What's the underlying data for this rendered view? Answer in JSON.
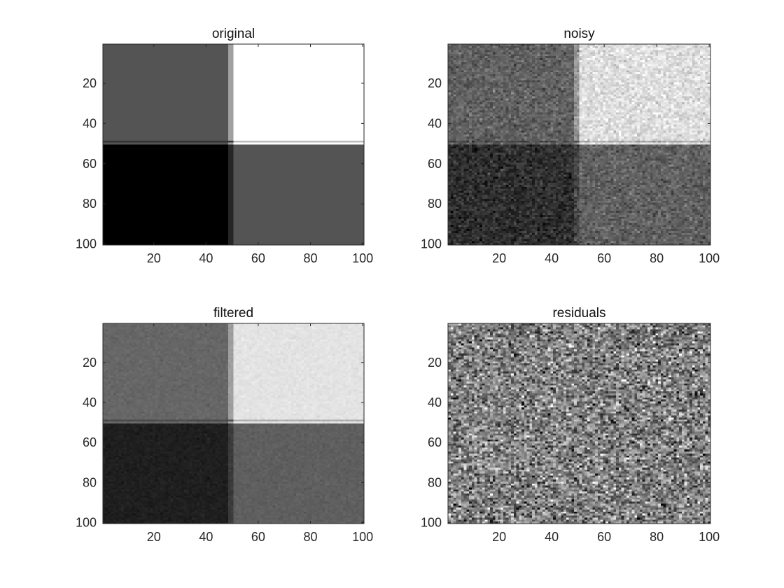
{
  "chart_data": [
    {
      "type": "heatmap",
      "title": "original",
      "colormap": "gray",
      "image_size": [
        100,
        100
      ],
      "x_ticks": [
        20,
        40,
        60,
        80,
        100
      ],
      "y_ticks": [
        20,
        40,
        60,
        80,
        100
      ],
      "xlim": [
        0.5,
        100.5
      ],
      "ylim": [
        100.5,
        0.5
      ],
      "quadrants": {
        "top_left": 0.33,
        "top_right": 1.0,
        "bottom_left": 0.0,
        "bottom_right": 0.33
      },
      "noise_std": 0,
      "smoothing_width": 1
    },
    {
      "type": "heatmap",
      "title": "noisy",
      "colormap": "gray",
      "image_size": [
        100,
        100
      ],
      "x_ticks": [
        20,
        40,
        60,
        80,
        100
      ],
      "y_ticks": [
        20,
        40,
        60,
        80,
        100
      ],
      "xlim": [
        0.5,
        100.5
      ],
      "ylim": [
        100.5,
        0.5
      ],
      "quadrants": {
        "top_left": 0.38,
        "top_right": 0.87,
        "bottom_left": 0.18,
        "bottom_right": 0.38
      },
      "noise_std": 0.06,
      "smoothing_width": 1
    },
    {
      "type": "heatmap",
      "title": "filtered",
      "colormap": "gray",
      "image_size": [
        100,
        100
      ],
      "x_ticks": [
        20,
        40,
        60,
        80,
        100
      ],
      "y_ticks": [
        20,
        40,
        60,
        80,
        100
      ],
      "xlim": [
        0.5,
        100.5
      ],
      "ylim": [
        100.5,
        0.5
      ],
      "quadrants": {
        "top_left": 0.4,
        "top_right": 0.89,
        "bottom_left": 0.12,
        "bottom_right": 0.37
      },
      "noise_std": 0.015,
      "smoothing_width": 1
    },
    {
      "type": "heatmap",
      "title": "residuals",
      "colormap": "gray",
      "image_size": [
        100,
        100
      ],
      "x_ticks": [
        20,
        40,
        60,
        80,
        100
      ],
      "y_ticks": [
        20,
        40,
        60,
        80,
        100
      ],
      "xlim": [
        0.5,
        100.5
      ],
      "ylim": [
        100.5,
        0.5
      ],
      "quadrants": {
        "top_left": 0.5,
        "top_right": 0.5,
        "bottom_left": 0.5,
        "bottom_right": 0.5
      },
      "noise_std": 0.18,
      "smoothing_width": 0
    }
  ]
}
